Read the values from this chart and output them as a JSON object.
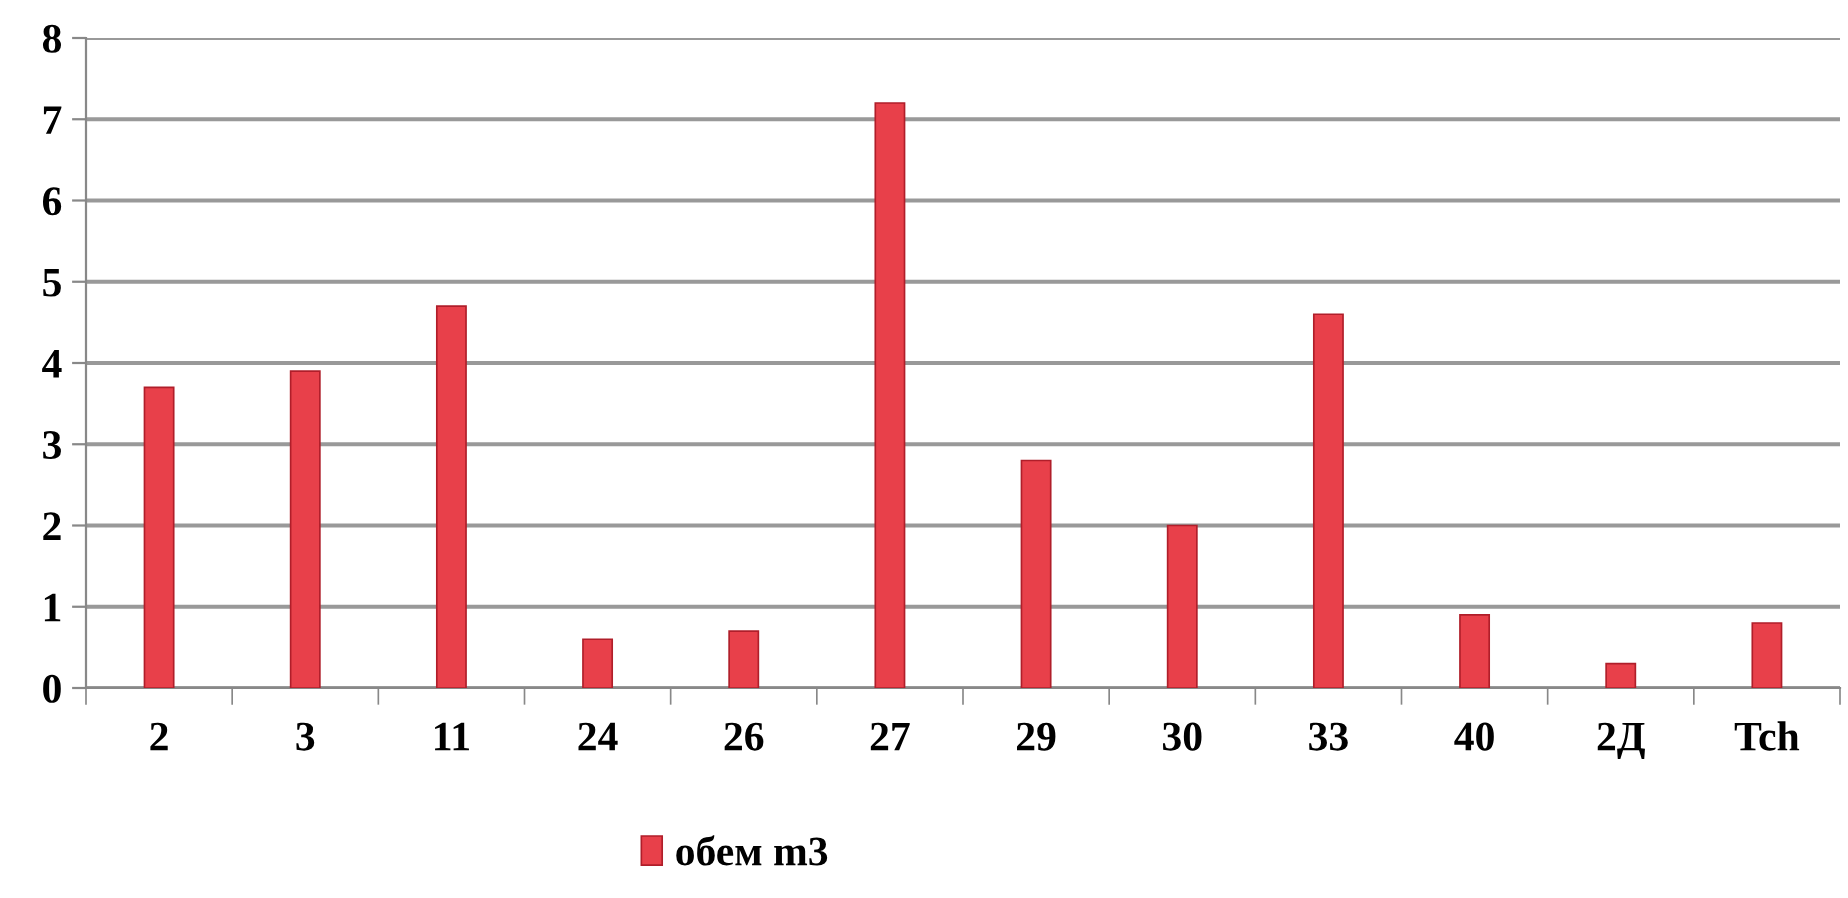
{
  "chart_data": {
    "type": "bar",
    "categories": [
      "2",
      "3",
      "11",
      "24",
      "26",
      "27",
      "29",
      "30",
      "33",
      "40",
      "2Д",
      "Tch"
    ],
    "series": [
      {
        "name": "обем m3",
        "color": "#e8404a",
        "values": [
          3.7,
          3.9,
          4.7,
          0.6,
          0.7,
          7.2,
          2.8,
          2.0,
          4.6,
          0.9,
          0.3,
          0.8
        ]
      }
    ],
    "ylim": [
      0,
      8
    ],
    "yticks": [
      0,
      1,
      2,
      3,
      4,
      5,
      6,
      7,
      8
    ],
    "grid": "y",
    "legend": "bottom"
  }
}
